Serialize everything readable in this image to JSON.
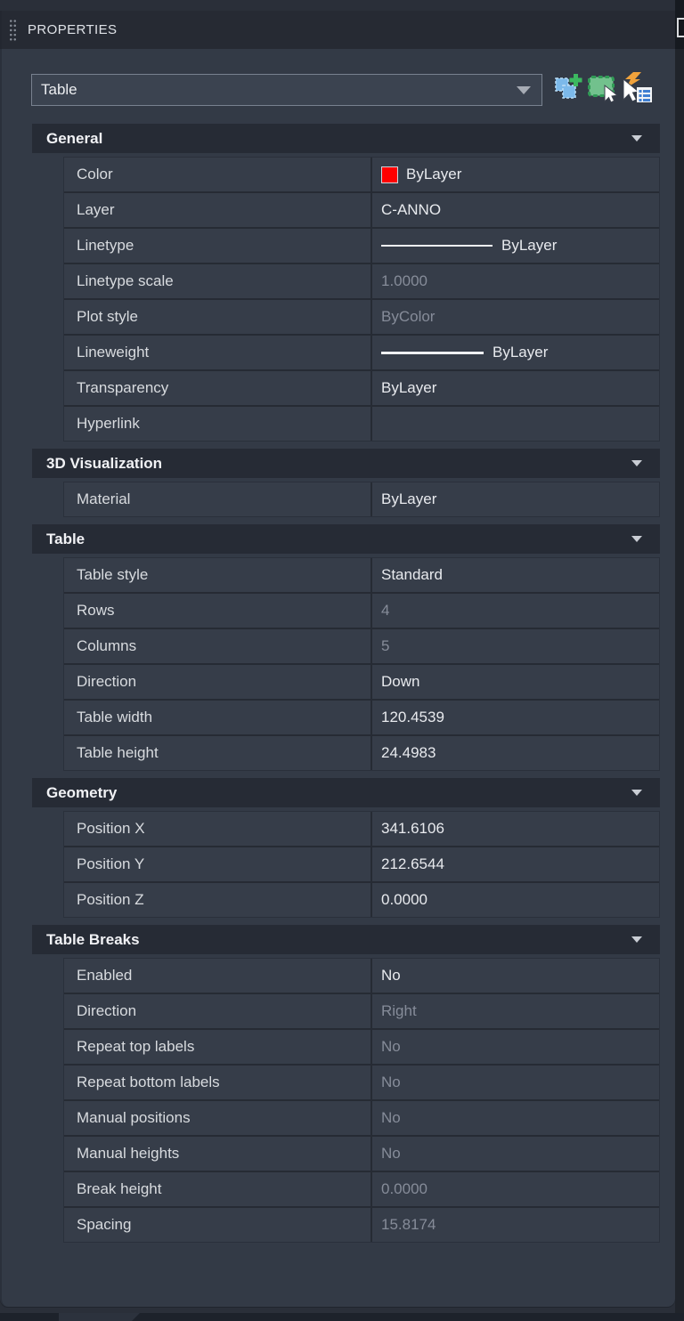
{
  "panel": {
    "title": "PROPERTIES",
    "selector": {
      "value": "Table"
    },
    "toolbar_icons": [
      {
        "name": "pickadd-toggle"
      },
      {
        "name": "select-objects"
      },
      {
        "name": "quick-select"
      }
    ]
  },
  "sections": [
    {
      "title": "General",
      "rows": [
        {
          "label": "Color",
          "value": "ByLayer",
          "type": "color",
          "disabled": false
        },
        {
          "label": "Layer",
          "value": "C-ANNO",
          "type": "text",
          "disabled": false
        },
        {
          "label": "Linetype",
          "value": "ByLayer",
          "type": "linetype",
          "disabled": false
        },
        {
          "label": "Linetype scale",
          "value": "1.0000",
          "type": "text",
          "disabled": true
        },
        {
          "label": "Plot style",
          "value": "ByColor",
          "type": "text",
          "disabled": true
        },
        {
          "label": "Lineweight",
          "value": "ByLayer",
          "type": "lineweight",
          "disabled": false
        },
        {
          "label": "Transparency",
          "value": "ByLayer",
          "type": "text",
          "disabled": false
        },
        {
          "label": "Hyperlink",
          "value": "",
          "type": "text",
          "disabled": false
        }
      ]
    },
    {
      "title": "3D Visualization",
      "rows": [
        {
          "label": "Material",
          "value": "ByLayer",
          "type": "text",
          "disabled": false
        }
      ]
    },
    {
      "title": "Table",
      "rows": [
        {
          "label": "Table style",
          "value": "Standard",
          "type": "text",
          "disabled": false
        },
        {
          "label": "Rows",
          "value": "4",
          "type": "text",
          "disabled": true
        },
        {
          "label": "Columns",
          "value": "5",
          "type": "text",
          "disabled": true
        },
        {
          "label": "Direction",
          "value": "Down",
          "type": "text",
          "disabled": false
        },
        {
          "label": "Table width",
          "value": "120.4539",
          "type": "text",
          "disabled": false
        },
        {
          "label": "Table height",
          "value": "24.4983",
          "type": "text",
          "disabled": false
        }
      ]
    },
    {
      "title": "Geometry",
      "rows": [
        {
          "label": "Position X",
          "value": "341.6106",
          "type": "text",
          "disabled": false
        },
        {
          "label": "Position Y",
          "value": "212.6544",
          "type": "text",
          "disabled": false
        },
        {
          "label": "Position Z",
          "value": "0.0000",
          "type": "text",
          "disabled": false
        }
      ]
    },
    {
      "title": "Table Breaks",
      "rows": [
        {
          "label": "Enabled",
          "value": "No",
          "type": "text",
          "disabled": false
        },
        {
          "label": "Direction",
          "value": "Right",
          "type": "text",
          "disabled": true
        },
        {
          "label": "Repeat top labels",
          "value": "No",
          "type": "text",
          "disabled": true
        },
        {
          "label": "Repeat bottom labels",
          "value": "No",
          "type": "text",
          "disabled": true
        },
        {
          "label": "Manual positions",
          "value": "No",
          "type": "text",
          "disabled": true
        },
        {
          "label": "Manual heights",
          "value": "No",
          "type": "text",
          "disabled": true
        },
        {
          "label": "Break height",
          "value": "0.0000",
          "type": "text",
          "disabled": true
        },
        {
          "label": "Spacing",
          "value": "15.8174",
          "type": "text",
          "disabled": true
        }
      ]
    }
  ],
  "colors": {
    "swatch_red": "#ff0000",
    "panel_body": "#333a46",
    "section_header": "#262b35",
    "row_cell": "#363d49",
    "accent_blue": "#7cb9ea",
    "accent_green": "#4ab96b",
    "accent_orange": "#f0a23c"
  }
}
